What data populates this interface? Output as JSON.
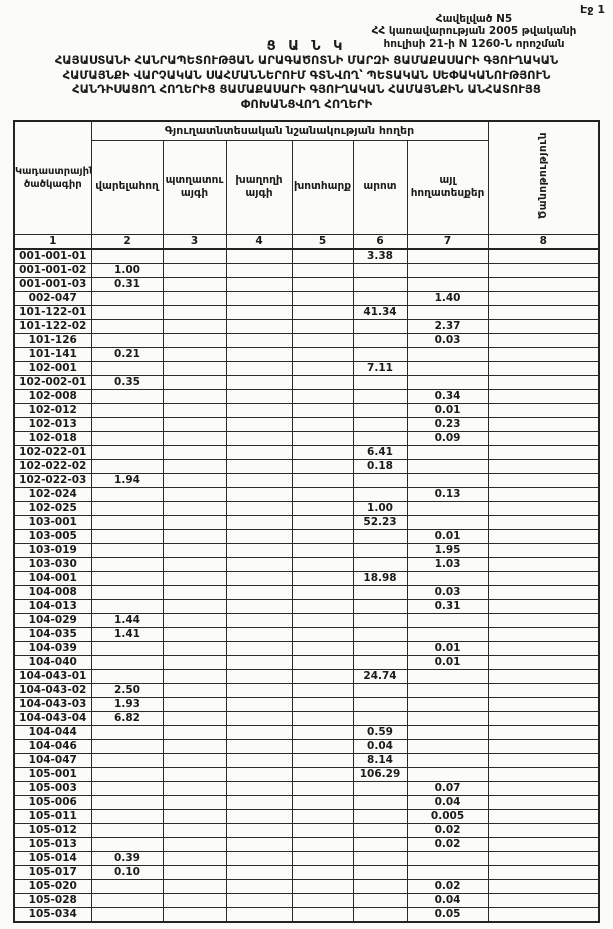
{
  "colors": {
    "ink": "#1b1b1b",
    "paper": "#fbfbf8",
    "border": "#2b2b2b"
  },
  "page": {
    "page_number": "Էջ 1",
    "appendix_lines": [
      "Հավելված N5",
      "ՀՀ կառավարության 2005 թվականի",
      "հուլիսի 21-ի N 1260-Ն որոշման"
    ],
    "list_label": "Ց Ա Ն Կ",
    "title_lines": [
      "ՀԱՅԱՍՏԱՆԻ ՀԱՆՐԱՊԵՏՈՒԹՅԱՆ ԱՐԱԳԱԾՈՏՆԻ ՄԱՐԶԻ ՑԱՄԱՔԱՍԱՐԻ ԳՅՈՒՂԱԿԱՆ",
      "ՀԱՄԱՅՆՔԻ ՎԱՐՉԱԿԱՆ ՍԱՀՄԱՆՆԵՐՈՒՄ ԳՏՆՎՈՂ՝ ՊԵՏԱԿԱՆ ՍԵՓԱԿԱՆՈՒԹՅՈՒՆ",
      "ՀԱՆԴԻՍԱՑՈՂ ՀՈՂԵՐԻՑ ՑԱՄԱՔԱՍԱՐԻ ԳՅՈՒՂԱԿԱՆ ՀԱՄԱՅՆՔԻՆ ԱՆՀԱՏՈՒՅՑ",
      "ՓՈԽԱՆՑՎՈՂ ՀՈՂԵՐԻ"
    ]
  },
  "table": {
    "col1_header": "Կադաստրային ծածկագիր",
    "group_header": "Գյուղատնտեսական նշանակության հողեր",
    "col8_header": "Ծանոթություն",
    "sub_headers": [
      "վարելահող",
      "պտղատու այգի",
      "խաղողի այգի",
      "խոտհարք",
      "արոտ",
      "այլ հողատեսքեր"
    ],
    "number_row": [
      "1",
      "2",
      "3",
      "4",
      "5",
      "6",
      "7",
      "8"
    ],
    "rows": [
      {
        "code": "001-001-01",
        "values": [
          "",
          "",
          "",
          "",
          "3.38",
          "",
          ""
        ]
      },
      {
        "code": "001-001-02",
        "values": [
          "1.00",
          "",
          "",
          "",
          "",
          "",
          ""
        ]
      },
      {
        "code": "001-001-03",
        "values": [
          "0.31",
          "",
          "",
          "",
          "",
          "",
          ""
        ]
      },
      {
        "code": "002-047",
        "values": [
          "",
          "",
          "",
          "",
          "",
          "1.40",
          ""
        ]
      },
      {
        "code": "101-122-01",
        "values": [
          "",
          "",
          "",
          "",
          "41.34",
          "",
          ""
        ]
      },
      {
        "code": "101-122-02",
        "values": [
          "",
          "",
          "",
          "",
          "",
          "2.37",
          ""
        ]
      },
      {
        "code": "101-126",
        "values": [
          "",
          "",
          "",
          "",
          "",
          "0.03",
          ""
        ]
      },
      {
        "code": "101-141",
        "values": [
          "0.21",
          "",
          "",
          "",
          "",
          "",
          ""
        ]
      },
      {
        "code": "102-001",
        "values": [
          "",
          "",
          "",
          "",
          "7.11",
          "",
          ""
        ]
      },
      {
        "code": "102-002-01",
        "values": [
          "0.35",
          "",
          "",
          "",
          "",
          "",
          ""
        ]
      },
      {
        "code": "102-008",
        "values": [
          "",
          "",
          "",
          "",
          "",
          "0.34",
          ""
        ]
      },
      {
        "code": "102-012",
        "values": [
          "",
          "",
          "",
          "",
          "",
          "0.01",
          ""
        ]
      },
      {
        "code": "102-013",
        "values": [
          "",
          "",
          "",
          "",
          "",
          "0.23",
          ""
        ]
      },
      {
        "code": "102-018",
        "values": [
          "",
          "",
          "",
          "",
          "",
          "0.09",
          ""
        ]
      },
      {
        "code": "102-022-01",
        "values": [
          "",
          "",
          "",
          "",
          "6.41",
          "",
          ""
        ]
      },
      {
        "code": "102-022-02",
        "values": [
          "",
          "",
          "",
          "",
          "0.18",
          "",
          ""
        ]
      },
      {
        "code": "102-022-03",
        "values": [
          "1.94",
          "",
          "",
          "",
          "",
          "",
          ""
        ]
      },
      {
        "code": "102-024",
        "values": [
          "",
          "",
          "",
          "",
          "",
          "0.13",
          ""
        ]
      },
      {
        "code": "102-025",
        "values": [
          "",
          "",
          "",
          "",
          "1.00",
          "",
          ""
        ]
      },
      {
        "code": "103-001",
        "values": [
          "",
          "",
          "",
          "",
          "52.23",
          "",
          ""
        ]
      },
      {
        "code": "103-005",
        "values": [
          "",
          "",
          "",
          "",
          "",
          "0.01",
          ""
        ]
      },
      {
        "code": "103-019",
        "values": [
          "",
          "",
          "",
          "",
          "",
          "1.95",
          ""
        ]
      },
      {
        "code": "103-030",
        "values": [
          "",
          "",
          "",
          "",
          "",
          "1.03",
          ""
        ]
      },
      {
        "code": "104-001",
        "values": [
          "",
          "",
          "",
          "",
          "18.98",
          "",
          ""
        ]
      },
      {
        "code": "104-008",
        "values": [
          "",
          "",
          "",
          "",
          "",
          "0.03",
          ""
        ]
      },
      {
        "code": "104-013",
        "values": [
          "",
          "",
          "",
          "",
          "",
          "0.31",
          ""
        ]
      },
      {
        "code": "104-029",
        "values": [
          "1.44",
          "",
          "",
          "",
          "",
          "",
          ""
        ]
      },
      {
        "code": "104-035",
        "values": [
          "1.41",
          "",
          "",
          "",
          "",
          "",
          ""
        ]
      },
      {
        "code": "104-039",
        "values": [
          "",
          "",
          "",
          "",
          "",
          "0.01",
          ""
        ]
      },
      {
        "code": "104-040",
        "values": [
          "",
          "",
          "",
          "",
          "",
          "0.01",
          ""
        ]
      },
      {
        "code": "104-043-01",
        "values": [
          "",
          "",
          "",
          "",
          "24.74",
          "",
          ""
        ]
      },
      {
        "code": "104-043-02",
        "values": [
          "2.50",
          "",
          "",
          "",
          "",
          "",
          ""
        ]
      },
      {
        "code": "104-043-03",
        "values": [
          "1.93",
          "",
          "",
          "",
          "",
          "",
          ""
        ]
      },
      {
        "code": "104-043-04",
        "values": [
          "6.82",
          "",
          "",
          "",
          "",
          "",
          ""
        ]
      },
      {
        "code": "104-044",
        "values": [
          "",
          "",
          "",
          "",
          "0.59",
          "",
          ""
        ]
      },
      {
        "code": "104-046",
        "values": [
          "",
          "",
          "",
          "",
          "0.04",
          "",
          ""
        ]
      },
      {
        "code": "104-047",
        "values": [
          "",
          "",
          "",
          "",
          "8.14",
          "",
          ""
        ]
      },
      {
        "code": "105-001",
        "values": [
          "",
          "",
          "",
          "",
          "106.29",
          "",
          ""
        ]
      },
      {
        "code": "105-003",
        "values": [
          "",
          "",
          "",
          "",
          "",
          "0.07",
          ""
        ]
      },
      {
        "code": "105-006",
        "values": [
          "",
          "",
          "",
          "",
          "",
          "0.04",
          ""
        ]
      },
      {
        "code": "105-011",
        "values": [
          "",
          "",
          "",
          "",
          "",
          "0.005",
          ""
        ]
      },
      {
        "code": "105-012",
        "values": [
          "",
          "",
          "",
          "",
          "",
          "0.02",
          ""
        ]
      },
      {
        "code": "105-013",
        "values": [
          "",
          "",
          "",
          "",
          "",
          "0.02",
          ""
        ]
      },
      {
        "code": "105-014",
        "values": [
          "0.39",
          "",
          "",
          "",
          "",
          "",
          ""
        ]
      },
      {
        "code": "105-017",
        "values": [
          "0.10",
          "",
          "",
          "",
          "",
          "",
          ""
        ]
      },
      {
        "code": "105-020",
        "values": [
          "",
          "",
          "",
          "",
          "",
          "0.02",
          ""
        ]
      },
      {
        "code": "105-028",
        "values": [
          "",
          "",
          "",
          "",
          "",
          "0.04",
          ""
        ]
      },
      {
        "code": "105-034",
        "values": [
          "",
          "",
          "",
          "",
          "",
          "0.05",
          ""
        ]
      }
    ]
  }
}
